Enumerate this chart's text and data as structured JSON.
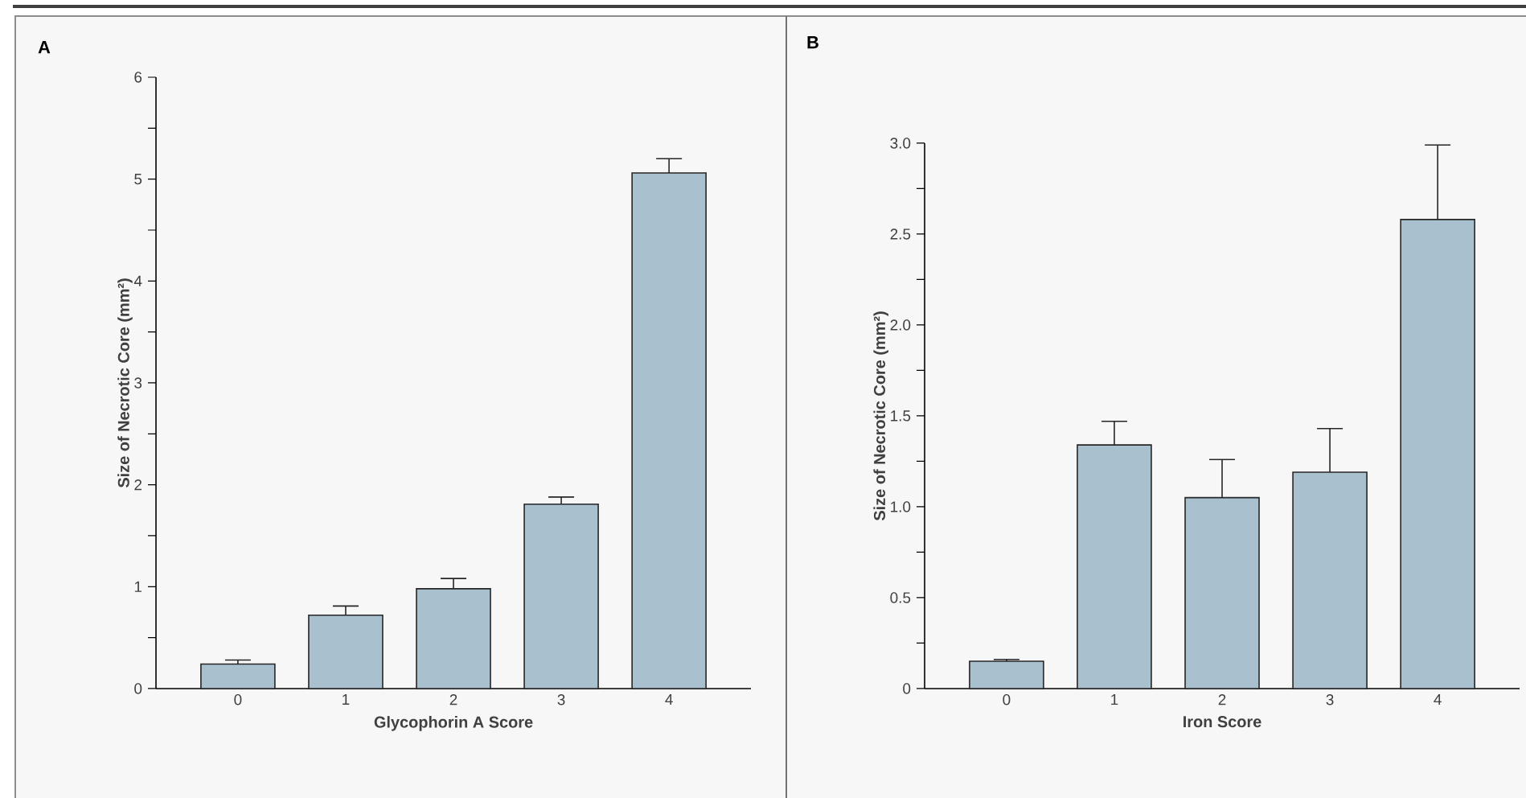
{
  "chart_data": [
    {
      "type": "bar",
      "title": "A",
      "xlabel": "Glycophorin A Score",
      "ylabel": "Size of Necrotic Core (mm²)",
      "categories": [
        "0",
        "1",
        "2",
        "3",
        "4"
      ],
      "values": [
        0.24,
        0.72,
        0.98,
        1.81,
        5.06
      ],
      "errors": [
        [
          0.24,
          0.28
        ],
        [
          0.72,
          0.81
        ],
        [
          0.98,
          1.08
        ],
        [
          1.81,
          1.88
        ],
        [
          5.06,
          5.2
        ]
      ],
      "color": "#a9c1cf",
      "ylim": [
        0,
        6
      ],
      "yticks": [
        0,
        {
          "value": 0.5,
          "label": null
        },
        1,
        {
          "value": 1.5,
          "label": null
        },
        2,
        {
          "value": 2.5,
          "label": null
        },
        3,
        {
          "value": 3.5,
          "label": null
        },
        4,
        {
          "value": 4.5,
          "label": null
        },
        5,
        {
          "value": 5.5,
          "label": null
        },
        6
      ]
    },
    {
      "type": "bar",
      "title": "B",
      "xlabel": "Iron Score",
      "ylabel": "Size of Necrotic Core (mm²)",
      "categories": [
        "0",
        "1",
        "2",
        "3",
        "4"
      ],
      "values": [
        0.15,
        1.34,
        1.05,
        1.19,
        2.58
      ],
      "errors": [
        [
          0.15,
          0.16
        ],
        [
          1.34,
          1.47
        ],
        [
          1.05,
          1.26
        ],
        [
          1.19,
          1.43
        ],
        [
          2.58,
          2.99
        ]
      ],
      "color": "#a9c1cf",
      "ylim": [
        0,
        3
      ],
      "yticks": [
        0,
        {
          "value": 0.25,
          "label": null
        },
        0.5,
        {
          "value": 0.75,
          "label": null
        },
        {
          "value": 1,
          "label": "1.0"
        },
        {
          "value": 1.25,
          "label": null
        },
        1.5,
        {
          "value": 1.75,
          "label": null
        },
        {
          "value": 2,
          "label": "2.0"
        },
        {
          "value": 2.25,
          "label": null
        },
        2.5,
        {
          "value": 2.75,
          "label": null
        },
        {
          "value": 3,
          "label": "3.0"
        }
      ]
    }
  ]
}
